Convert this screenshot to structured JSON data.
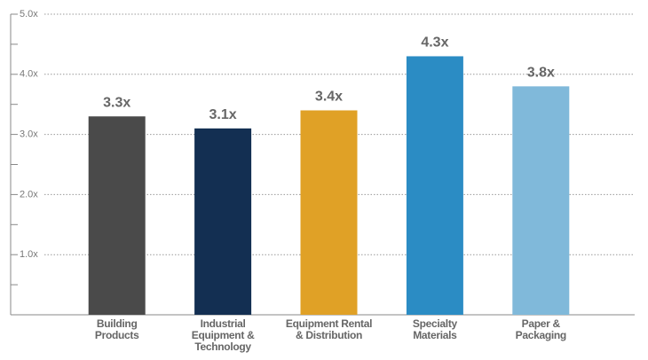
{
  "chart_data": {
    "type": "bar",
    "categories": [
      "Building\nProducts",
      "Industrial\nEquipment &\nTechnology",
      "Equipment Rental\n& Distribution",
      "Specialty\nMaterials",
      "Paper &\nPackaging"
    ],
    "values": [
      3.3,
      3.1,
      3.4,
      4.3,
      3.8
    ],
    "value_labels": [
      "3.3x",
      "3.1x",
      "3.4x",
      "4.3x",
      "3.8x"
    ],
    "colors": [
      "#4a4a4a",
      "#132f52",
      "#e0a126",
      "#2b8cc4",
      "#80b9da"
    ],
    "ylim": [
      0,
      5
    ],
    "yticks": [
      {
        "value": 1,
        "label": "1.0x"
      },
      {
        "value": 2,
        "label": "2.0x"
      },
      {
        "value": 3,
        "label": "3.0x"
      },
      {
        "value": 4,
        "label": "4.0x"
      },
      {
        "value": 5,
        "label": "5.0x"
      }
    ],
    "minor_yticks": [
      0.5,
      1.5,
      2.5,
      3.5,
      4.5
    ],
    "grid": true
  }
}
